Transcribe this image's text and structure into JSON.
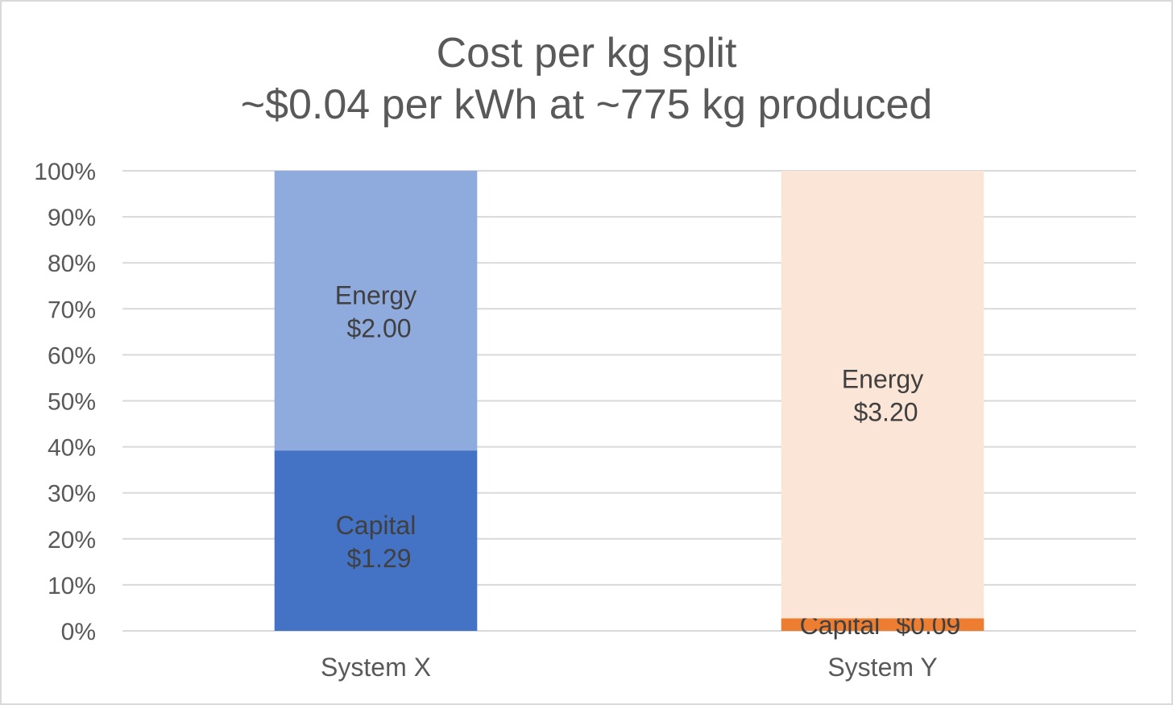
{
  "chart_data": {
    "type": "bar",
    "stacked": "percent",
    "title": "Cost per kg split",
    "subtitle": "~$0.04 per kWh at ~775 kg produced",
    "xlabel": "",
    "ylabel": "",
    "ylim": [
      0,
      100
    ],
    "y_ticks": [
      "0%",
      "10%",
      "20%",
      "30%",
      "40%",
      "50%",
      "60%",
      "70%",
      "80%",
      "90%",
      "100%"
    ],
    "grid": true,
    "legend": "none",
    "categories": [
      "System X",
      "System Y"
    ],
    "bars": [
      {
        "category": "System X",
        "segments": [
          {
            "name": "Capital",
            "value_label": "$1.29",
            "value": 1.29,
            "color": "#4472c4"
          },
          {
            "name": "Energy",
            "value_label": "$2.00",
            "value": 2.0,
            "color": "#8faadc"
          }
        ]
      },
      {
        "category": "System Y",
        "segments": [
          {
            "name": "Capital",
            "value_label": "$0.09",
            "value": 0.09,
            "color": "#ed7d31"
          },
          {
            "name": "Energy",
            "value_label": "$3.20",
            "value": 3.2,
            "color": "#fbe5d6"
          }
        ]
      }
    ]
  }
}
